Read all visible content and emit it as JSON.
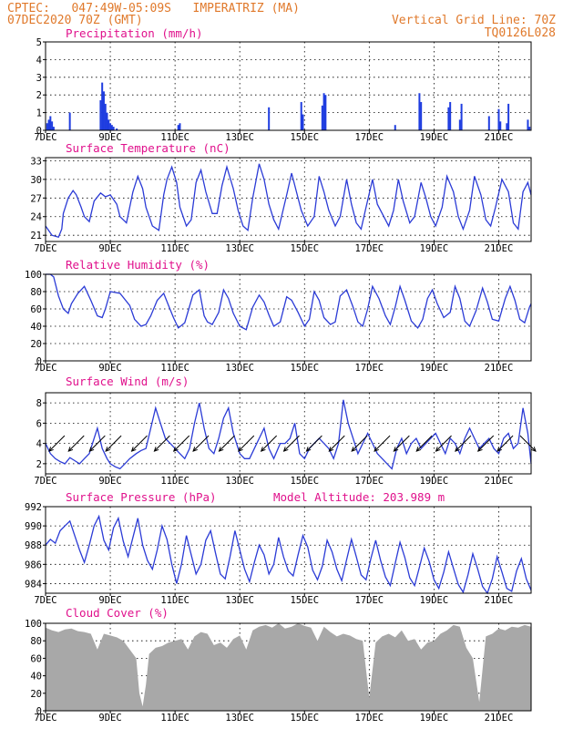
{
  "header": {
    "line1_left": "CPTEC:   047:49W-05:09S   IMPERATRIZ (MA)",
    "line2_left": "07DEC2020 70Z (GMT)",
    "line1_right": "Vertical Grid Line: 70Z",
    "line2_right": "TQ0126L028",
    "model_altitude": "Model Altitude: 203.989 m"
  },
  "colors": {
    "line": "#2b3bd6",
    "bar": "#1f3de0",
    "cloud": "#a8a8a8",
    "title": "#e0118c",
    "header": "#e0792b"
  },
  "x_tick_labels": [
    "7DEC",
    "9DEC",
    "11DEC",
    "13DEC",
    "15DEC",
    "17DEC",
    "19DEC",
    "21DEC"
  ],
  "chart_data": [
    {
      "type": "bar",
      "title": "Precipitation (mm/h)",
      "ylim": [
        0,
        5
      ],
      "yticks": [
        0,
        1,
        2,
        3,
        4,
        5
      ],
      "x_range_days": [
        0,
        15
      ],
      "x": [
        0.05,
        0.1,
        0.15,
        0.2,
        0.25,
        0.75,
        1.7,
        1.75,
        1.8,
        1.85,
        1.9,
        1.95,
        2.0,
        2.05,
        2.1,
        2.2,
        4.1,
        4.15,
        6.9,
        7.9,
        7.95,
        8.55,
        8.6,
        8.65,
        10.8,
        11.55,
        11.6,
        12.45,
        12.5,
        12.8,
        12.85,
        13.7,
        14.0,
        14.05,
        14.25,
        14.3,
        14.9,
        14.95
      ],
      "values": [
        0.4,
        0.6,
        0.8,
        0.5,
        0.2,
        1.0,
        1.7,
        2.7,
        2.2,
        1.5,
        1.0,
        0.6,
        0.4,
        0.3,
        0.2,
        0.1,
        0.3,
        0.4,
        1.3,
        1.6,
        0.9,
        1.4,
        2.1,
        2.0,
        0.3,
        2.1,
        1.6,
        1.3,
        1.6,
        0.6,
        1.5,
        0.8,
        1.2,
        0.5,
        0.4,
        1.5,
        0.6,
        0.2
      ]
    },
    {
      "type": "line",
      "title": "Surface Temperature (nC)",
      "ylim": [
        20,
        33.5
      ],
      "yticks": [
        21,
        24,
        27,
        30,
        33
      ],
      "x_range_days": [
        0,
        15
      ],
      "x": [
        0,
        0.2,
        0.4,
        0.5,
        0.55,
        0.7,
        0.85,
        0.95,
        1.1,
        1.2,
        1.35,
        1.5,
        1.7,
        1.85,
        2.0,
        2.2,
        2.3,
        2.5,
        2.7,
        2.85,
        3.0,
        3.1,
        3.3,
        3.5,
        3.65,
        3.75,
        3.9,
        4.05,
        4.15,
        4.35,
        4.5,
        4.65,
        4.8,
        4.95,
        5.15,
        5.3,
        5.45,
        5.6,
        5.8,
        5.95,
        6.1,
        6.25,
        6.4,
        6.6,
        6.75,
        6.9,
        7.05,
        7.2,
        7.45,
        7.6,
        7.75,
        7.9,
        8.1,
        8.3,
        8.45,
        8.6,
        8.75,
        8.95,
        9.1,
        9.3,
        9.45,
        9.6,
        9.75,
        9.9,
        10.1,
        10.25,
        10.45,
        10.6,
        10.75,
        10.9,
        11.05,
        11.25,
        11.4,
        11.6,
        11.75,
        11.9,
        12.05,
        12.25,
        12.4,
        12.6,
        12.75,
        12.9,
        13.1,
        13.25,
        13.45,
        13.6,
        13.75,
        13.9,
        14.1,
        14.3,
        14.45,
        14.6,
        14.75,
        14.9,
        15.0
      ],
      "values": [
        22.5,
        21.0,
        20.7,
        22.0,
        24.5,
        27.0,
        28.2,
        27.5,
        25.5,
        24.0,
        23.2,
        26.5,
        27.8,
        27.2,
        27.5,
        26.0,
        24.0,
        23.0,
        28.0,
        30.5,
        28.5,
        25.5,
        22.5,
        21.8,
        27.5,
        30.0,
        32.0,
        29.5,
        25.5,
        22.5,
        23.5,
        29.5,
        31.5,
        28.0,
        24.5,
        24.5,
        29.0,
        32.0,
        28.5,
        25.0,
        22.5,
        21.8,
        27.0,
        32.5,
        30.0,
        26.0,
        23.5,
        22.0,
        27.5,
        31.0,
        28.0,
        25.0,
        22.5,
        24.0,
        30.5,
        28.0,
        25.0,
        22.5,
        24.0,
        30.0,
        26.0,
        23.0,
        22.0,
        25.5,
        30.0,
        26.0,
        24.0,
        22.5,
        25.0,
        30.0,
        26.5,
        23.0,
        24.0,
        29.5,
        27.0,
        24.0,
        22.5,
        25.5,
        30.5,
        28.0,
        24.0,
        22.0,
        25.0,
        30.5,
        27.5,
        23.5,
        22.5,
        25.5,
        30.0,
        28.0,
        23.0,
        22.0,
        28.0,
        29.5,
        27.5
      ]
    },
    {
      "type": "line",
      "title": "Relative Humidity (%)",
      "ylim": [
        0,
        100
      ],
      "yticks": [
        0,
        20,
        40,
        60,
        80,
        100
      ],
      "x_range_days": [
        0,
        15
      ],
      "x": [
        0,
        0.15,
        0.25,
        0.4,
        0.55,
        0.7,
        0.8,
        1.0,
        1.2,
        1.4,
        1.6,
        1.75,
        1.85,
        2.0,
        2.3,
        2.6,
        2.75,
        2.95,
        3.1,
        3.25,
        3.45,
        3.65,
        3.8,
        3.95,
        4.1,
        4.3,
        4.55,
        4.75,
        4.9,
        5.0,
        5.15,
        5.35,
        5.5,
        5.65,
        5.8,
        6.0,
        6.2,
        6.4,
        6.6,
        6.75,
        6.9,
        7.05,
        7.25,
        7.45,
        7.6,
        7.8,
        8.0,
        8.15,
        8.3,
        8.45,
        8.6,
        8.8,
        8.95,
        9.1,
        9.3,
        9.5,
        9.65,
        9.8,
        9.95,
        10.1,
        10.3,
        10.5,
        10.65,
        10.8,
        10.95,
        11.1,
        11.3,
        11.5,
        11.65,
        11.8,
        11.95,
        12.1,
        12.3,
        12.5,
        12.65,
        12.8,
        12.95,
        13.1,
        13.3,
        13.5,
        13.65,
        13.8,
        14.0,
        14.2,
        14.35,
        14.5,
        14.65,
        14.8,
        14.95,
        15.0
      ],
      "values": [
        100,
        100,
        97,
        75,
        60,
        55,
        66,
        78,
        86,
        70,
        52,
        50,
        60,
        80,
        78,
        64,
        48,
        40,
        42,
        52,
        70,
        78,
        64,
        50,
        38,
        44,
        76,
        82,
        52,
        45,
        42,
        56,
        82,
        72,
        55,
        40,
        36,
        62,
        76,
        68,
        53,
        40,
        45,
        74,
        70,
        56,
        40,
        48,
        80,
        70,
        50,
        42,
        45,
        75,
        82,
        62,
        45,
        40,
        60,
        86,
        72,
        52,
        42,
        62,
        86,
        70,
        46,
        38,
        48,
        72,
        82,
        66,
        50,
        56,
        86,
        72,
        46,
        40,
        58,
        84,
        68,
        48,
        46,
        72,
        86,
        70,
        48,
        44,
        62,
        66
      ]
    },
    {
      "type": "line",
      "title": "Surface Wind (m/s)",
      "ylim": [
        1,
        9
      ],
      "yticks": [
        2,
        4,
        6,
        8
      ],
      "x_range_days": [
        0,
        15
      ],
      "x": [
        0,
        0.15,
        0.3,
        0.45,
        0.6,
        0.75,
        0.9,
        1.05,
        1.2,
        1.35,
        1.5,
        1.6,
        1.75,
        1.9,
        2.0,
        2.15,
        2.3,
        2.45,
        2.6,
        2.8,
        2.95,
        3.1,
        3.25,
        3.4,
        3.55,
        3.7,
        3.85,
        4.0,
        4.15,
        4.3,
        4.45,
        4.6,
        4.75,
        4.9,
        5.05,
        5.2,
        5.35,
        5.5,
        5.65,
        5.8,
        6.0,
        6.15,
        6.3,
        6.45,
        6.6,
        6.75,
        6.9,
        7.05,
        7.25,
        7.4,
        7.55,
        7.7,
        7.85,
        8.0,
        8.15,
        8.3,
        8.45,
        8.6,
        8.75,
        8.9,
        9.05,
        9.2,
        9.35,
        9.5,
        9.65,
        9.8,
        9.95,
        10.1,
        10.25,
        10.4,
        10.55,
        10.7,
        10.85,
        11.0,
        11.15,
        11.3,
        11.45,
        11.6,
        11.75,
        11.9,
        12.05,
        12.2,
        12.35,
        12.5,
        12.65,
        12.8,
        12.95,
        13.1,
        13.25,
        13.4,
        13.55,
        13.7,
        13.85,
        14.0,
        14.15,
        14.3,
        14.45,
        14.6,
        14.75,
        14.9,
        15.0
      ],
      "values": [
        4.0,
        3.0,
        2.5,
        2.2,
        2.0,
        2.6,
        2.3,
        2.0,
        2.5,
        3.0,
        4.5,
        5.5,
        3.5,
        2.5,
        2.0,
        1.7,
        1.5,
        2.0,
        2.5,
        3.0,
        3.3,
        3.5,
        5.5,
        7.5,
        6.0,
        4.5,
        4.0,
        3.5,
        3.0,
        2.5,
        3.5,
        6.0,
        8.0,
        5.5,
        3.5,
        3.0,
        4.5,
        6.5,
        7.5,
        5.0,
        3.0,
        2.5,
        2.5,
        3.5,
        4.5,
        5.5,
        3.5,
        2.5,
        4.0,
        4.0,
        4.5,
        6.0,
        3.0,
        2.5,
        3.5,
        4.0,
        4.5,
        4.0,
        3.5,
        2.5,
        4.0,
        8.3,
        6.0,
        4.5,
        3.0,
        4.0,
        5.0,
        4.0,
        3.0,
        2.5,
        2.0,
        1.5,
        3.5,
        4.5,
        3.0,
        4.0,
        4.5,
        3.5,
        4.0,
        4.5,
        5.0,
        4.0,
        3.0,
        4.5,
        4.0,
        3.0,
        4.5,
        5.5,
        4.5,
        3.5,
        4.0,
        4.5,
        3.5,
        3.0,
        4.5,
        5.0,
        3.5,
        4.0,
        7.5,
        5.0,
        2.0
      ],
      "arrows": [
        {
          "x": 0.35,
          "y": 4.0,
          "u": -1,
          "v": -1
        },
        {
          "x": 0.95,
          "y": 4.0,
          "u": -1,
          "v": -1
        },
        {
          "x": 1.6,
          "y": 4.0,
          "u": -1,
          "v": -1
        },
        {
          "x": 2.1,
          "y": 4.0,
          "u": -1,
          "v": -1
        },
        {
          "x": 2.9,
          "y": 4.0,
          "u": -1,
          "v": -1
        },
        {
          "x": 3.6,
          "y": 4.0,
          "u": -1,
          "v": -1
        },
        {
          "x": 4.2,
          "y": 4.0,
          "u": -1,
          "v": -1
        },
        {
          "x": 4.8,
          "y": 4.0,
          "u": -1,
          "v": -1
        },
        {
          "x": 5.6,
          "y": 4.0,
          "u": -1,
          "v": -1
        },
        {
          "x": 6.2,
          "y": 4.0,
          "u": -1,
          "v": -1
        },
        {
          "x": 6.9,
          "y": 4.0,
          "u": -1,
          "v": -1
        },
        {
          "x": 7.6,
          "y": 4.0,
          "u": -1,
          "v": -1
        },
        {
          "x": 8.3,
          "y": 4.0,
          "u": -1,
          "v": -1
        },
        {
          "x": 9.0,
          "y": 4.0,
          "u": -1,
          "v": -1
        },
        {
          "x": 9.7,
          "y": 4.0,
          "u": -1,
          "v": -1
        },
        {
          "x": 10.4,
          "y": 4.0,
          "u": -1,
          "v": -1
        },
        {
          "x": 11.0,
          "y": 4.0,
          "u": -1,
          "v": -1
        },
        {
          "x": 11.7,
          "y": 4.0,
          "u": -1,
          "v": -1
        },
        {
          "x": 12.3,
          "y": 4.0,
          "u": -1,
          "v": -1
        },
        {
          "x": 12.9,
          "y": 4.0,
          "u": -1,
          "v": -1
        },
        {
          "x": 13.6,
          "y": 4.0,
          "u": -1,
          "v": -1
        },
        {
          "x": 14.2,
          "y": 4.0,
          "u": -1,
          "v": -1
        },
        {
          "x": 14.9,
          "y": 4.0,
          "u": 1,
          "v": -1
        }
      ]
    },
    {
      "type": "line",
      "title": "Surface Pressure (hPa)",
      "ylim": [
        983,
        992
      ],
      "yticks": [
        984,
        986,
        988,
        990,
        992
      ],
      "x_range_days": [
        0,
        15
      ],
      "x": [
        0,
        0.15,
        0.3,
        0.45,
        0.6,
        0.75,
        0.9,
        1.05,
        1.2,
        1.35,
        1.5,
        1.65,
        1.8,
        1.95,
        2.1,
        2.25,
        2.4,
        2.55,
        2.7,
        2.85,
        3.0,
        3.15,
        3.3,
        3.45,
        3.6,
        3.75,
        3.9,
        4.05,
        4.2,
        4.35,
        4.5,
        4.65,
        4.8,
        4.95,
        5.1,
        5.25,
        5.4,
        5.55,
        5.7,
        5.85,
        6.0,
        6.15,
        6.3,
        6.45,
        6.6,
        6.75,
        6.9,
        7.05,
        7.2,
        7.35,
        7.5,
        7.65,
        7.8,
        7.95,
        8.1,
        8.25,
        8.4,
        8.55,
        8.7,
        8.85,
        9.0,
        9.15,
        9.3,
        9.45,
        9.6,
        9.75,
        9.9,
        10.05,
        10.2,
        10.35,
        10.5,
        10.65,
        10.8,
        10.95,
        11.1,
        11.25,
        11.4,
        11.55,
        11.7,
        11.85,
        12.0,
        12.15,
        12.3,
        12.45,
        12.6,
        12.75,
        12.9,
        13.05,
        13.2,
        13.35,
        13.5,
        13.65,
        13.8,
        13.95,
        14.1,
        14.25,
        14.4,
        14.55,
        14.7,
        14.85,
        15.0
      ],
      "values": [
        988,
        988.6,
        988.2,
        989.5,
        990,
        990.5,
        989,
        987.5,
        986.2,
        988,
        990,
        991,
        988.5,
        987.5,
        989.8,
        990.8,
        988.4,
        986.8,
        988.8,
        990.8,
        988,
        986.4,
        985.5,
        987.5,
        990,
        988.6,
        986,
        984,
        986,
        989,
        987,
        985,
        986,
        988.5,
        989.5,
        987.2,
        985,
        984.5,
        986.8,
        989.5,
        987.5,
        985.5,
        984.2,
        986.2,
        988,
        987,
        985,
        986,
        988.8,
        986.8,
        985.3,
        984.8,
        987,
        989,
        987.8,
        985.4,
        984.4,
        985.8,
        988.5,
        987.3,
        985.5,
        984.3,
        986.5,
        988.6,
        986.8,
        984.9,
        984.4,
        986.6,
        988.5,
        986.4,
        984.7,
        983.8,
        986.1,
        988.3,
        986.7,
        984.6,
        983.8,
        985.7,
        987.7,
        986.3,
        984.4,
        983.5,
        985.2,
        987.3,
        985.6,
        983.9,
        983.1,
        984.9,
        987.1,
        985.5,
        983.7,
        983,
        984.5,
        986.8,
        985.2,
        983.5,
        983.2,
        985.3,
        986.6,
        984.5,
        983.3
      ]
    },
    {
      "type": "area",
      "title": "Cloud Cover (%)",
      "ylim": [
        0,
        100
      ],
      "yticks": [
        0,
        20,
        40,
        60,
        80,
        100
      ],
      "x_range_days": [
        0,
        15
      ],
      "x": [
        0,
        0.2,
        0.4,
        0.6,
        0.8,
        1.0,
        1.2,
        1.4,
        1.6,
        1.8,
        2.0,
        2.2,
        2.4,
        2.6,
        2.8,
        2.9,
        3.0,
        3.1,
        3.2,
        3.4,
        3.6,
        3.8,
        4.0,
        4.2,
        4.4,
        4.6,
        4.8,
        5.0,
        5.2,
        5.4,
        5.6,
        5.8,
        6.0,
        6.2,
        6.4,
        6.6,
        6.8,
        7.0,
        7.2,
        7.4,
        7.6,
        7.8,
        8.0,
        8.2,
        8.4,
        8.6,
        8.8,
        9.0,
        9.2,
        9.4,
        9.6,
        9.8,
        10.0,
        10.2,
        10.4,
        10.6,
        10.8,
        11.0,
        11.2,
        11.4,
        11.6,
        11.8,
        12.0,
        12.2,
        12.4,
        12.6,
        12.8,
        13.0,
        13.2,
        13.4,
        13.6,
        13.8,
        14.0,
        14.2,
        14.4,
        14.6,
        14.8,
        15.0
      ],
      "values": [
        95,
        92,
        90,
        93,
        94,
        91,
        90,
        88,
        70,
        88,
        86,
        84,
        80,
        70,
        60,
        20,
        5,
        30,
        65,
        72,
        74,
        78,
        80,
        82,
        70,
        85,
        90,
        88,
        75,
        78,
        72,
        82,
        86,
        70,
        92,
        96,
        98,
        95,
        100,
        94,
        96,
        100,
        97,
        95,
        80,
        96,
        90,
        85,
        88,
        86,
        82,
        80,
        15,
        78,
        85,
        88,
        84,
        92,
        80,
        82,
        70,
        78,
        80,
        88,
        92,
        98,
        96,
        72,
        60,
        10,
        85,
        88,
        94,
        92,
        96,
        95,
        98,
        96
      ]
    }
  ]
}
